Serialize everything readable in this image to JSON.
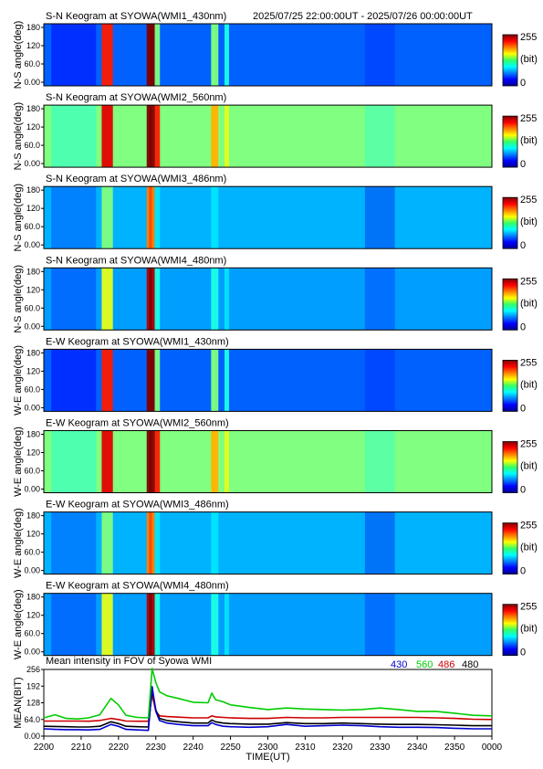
{
  "header": {
    "time_range": "2025/07/25 22:00:00UT - 2025/07/26 00:00:00UT"
  },
  "colors": {
    "series_430": "#0000cc",
    "series_560": "#00cc00",
    "series_486": "#cc0000",
    "series_480": "#000000"
  },
  "colorbar": {
    "max_label": "255",
    "unit_label": "(bit)",
    "min_label": "0"
  },
  "keogram_y_ticks": [
    "180",
    "120",
    "60.0",
    "0.00"
  ],
  "keograms": [
    {
      "title": "S-N Keogram at SYOWA(WMI1_430nm)",
      "ylabel": "N-S angle(deg)",
      "base": 0.22,
      "sat": [
        0.85,
        1.0,
        0.5,
        0.5,
        0.4,
        0.5,
        0.15
      ]
    },
    {
      "title": "S-N Keogram at SYOWA(WMI2_560nm)",
      "ylabel": "N-S angle(deg)",
      "base": 0.5,
      "sat": [
        0.9,
        1.0,
        0.85,
        0.7,
        0.6,
        0.7,
        0.4
      ]
    },
    {
      "title": "S-N Keogram at SYOWA(WMI3_486nm)",
      "ylabel": "N-S angle(deg)",
      "base": 0.3,
      "sat": [
        0.5,
        0.75,
        0.35,
        0.35,
        0.3,
        0.35,
        0.1
      ]
    },
    {
      "title": "S-N Keogram at SYOWA(WMI4_480nm)",
      "ylabel": "N-S angle(deg)",
      "base": 0.28,
      "sat": [
        0.6,
        0.95,
        0.4,
        0.4,
        0.35,
        0.4,
        0.15
      ]
    },
    {
      "title": "E-W Keogram at SYOWA(WMI1_430nm)",
      "ylabel": "W-E angle(deg)",
      "base": 0.22,
      "sat": [
        0.85,
        1.0,
        0.5,
        0.5,
        0.4,
        0.5,
        0.15
      ]
    },
    {
      "title": "E-W Keogram at SYOWA(WMI2_560nm)",
      "ylabel": "W-E angle(deg)",
      "base": 0.5,
      "sat": [
        0.9,
        1.0,
        0.85,
        0.7,
        0.6,
        0.7,
        0.4
      ]
    },
    {
      "title": "E-W Keogram at SYOWA(WMI3_486nm)",
      "ylabel": "W-E angle(deg)",
      "base": 0.3,
      "sat": [
        0.5,
        0.75,
        0.35,
        0.35,
        0.3,
        0.35,
        0.1
      ]
    },
    {
      "title": "E-W Keogram at SYOWA(WMI4_480nm)",
      "ylabel": "W-E angle(deg)",
      "base": 0.28,
      "sat": [
        0.6,
        0.95,
        0.4,
        0.4,
        0.35,
        0.4,
        0.15
      ]
    }
  ],
  "chart_data": {
    "type": "line",
    "title": "Mean intensity in FOV of Syowa WMI",
    "xlabel": "TIME(UT)",
    "ylabel": "MEAN(BIT)",
    "x_ticks": [
      "2200",
      "2210",
      "2220",
      "2230",
      "2240",
      "2250",
      "2300",
      "2310",
      "2320",
      "2330",
      "2340",
      "2350",
      "0000"
    ],
    "y_ticks": [
      "256",
      "192",
      "128",
      "64.0",
      "0.00"
    ],
    "xlim": [
      0,
      120
    ],
    "ylim": [
      0,
      256
    ],
    "x": [
      0,
      3,
      6,
      9,
      12,
      15,
      18,
      20,
      22,
      25,
      28,
      29,
      30,
      31,
      33,
      36,
      40,
      44,
      45,
      46,
      48,
      50,
      55,
      60,
      65,
      70,
      75,
      80,
      85,
      90,
      95,
      100,
      105,
      110,
      115,
      120
    ],
    "series": [
      {
        "name": "430",
        "values": [
          28,
          26,
          25,
          25,
          24,
          26,
          45,
          38,
          26,
          24,
          22,
          190,
          95,
          60,
          50,
          45,
          40,
          40,
          52,
          45,
          38,
          36,
          34,
          36,
          45,
          38,
          40,
          42,
          40,
          36,
          34,
          34,
          33,
          30,
          28,
          28
        ]
      },
      {
        "name": "560",
        "values": [
          70,
          82,
          68,
          66,
          70,
          82,
          145,
          120,
          80,
          72,
          70,
          260,
          205,
          170,
          155,
          145,
          130,
          128,
          165,
          140,
          132,
          120,
          110,
          102,
          108,
          104,
          102,
          100,
          102,
          108,
          102,
          95,
          95,
          88,
          80,
          78
        ]
      },
      {
        "name": "486",
        "values": [
          58,
          58,
          58,
          58,
          57,
          60,
          68,
          64,
          58,
          57,
          57,
          160,
          95,
          78,
          75,
          73,
          70,
          70,
          78,
          74,
          72,
          70,
          68,
          68,
          72,
          70,
          70,
          72,
          72,
          72,
          72,
          72,
          70,
          68,
          65,
          64
        ]
      },
      {
        "name": "480",
        "values": [
          38,
          37,
          36,
          35,
          35,
          38,
          55,
          48,
          38,
          36,
          35,
          180,
          100,
          68,
          60,
          55,
          50,
          50,
          62,
          55,
          50,
          48,
          46,
          46,
          52,
          48,
          48,
          50,
          48,
          46,
          45,
          45,
          44,
          42,
          40,
          40
        ]
      }
    ],
    "grid": false,
    "legend": "top-right"
  }
}
